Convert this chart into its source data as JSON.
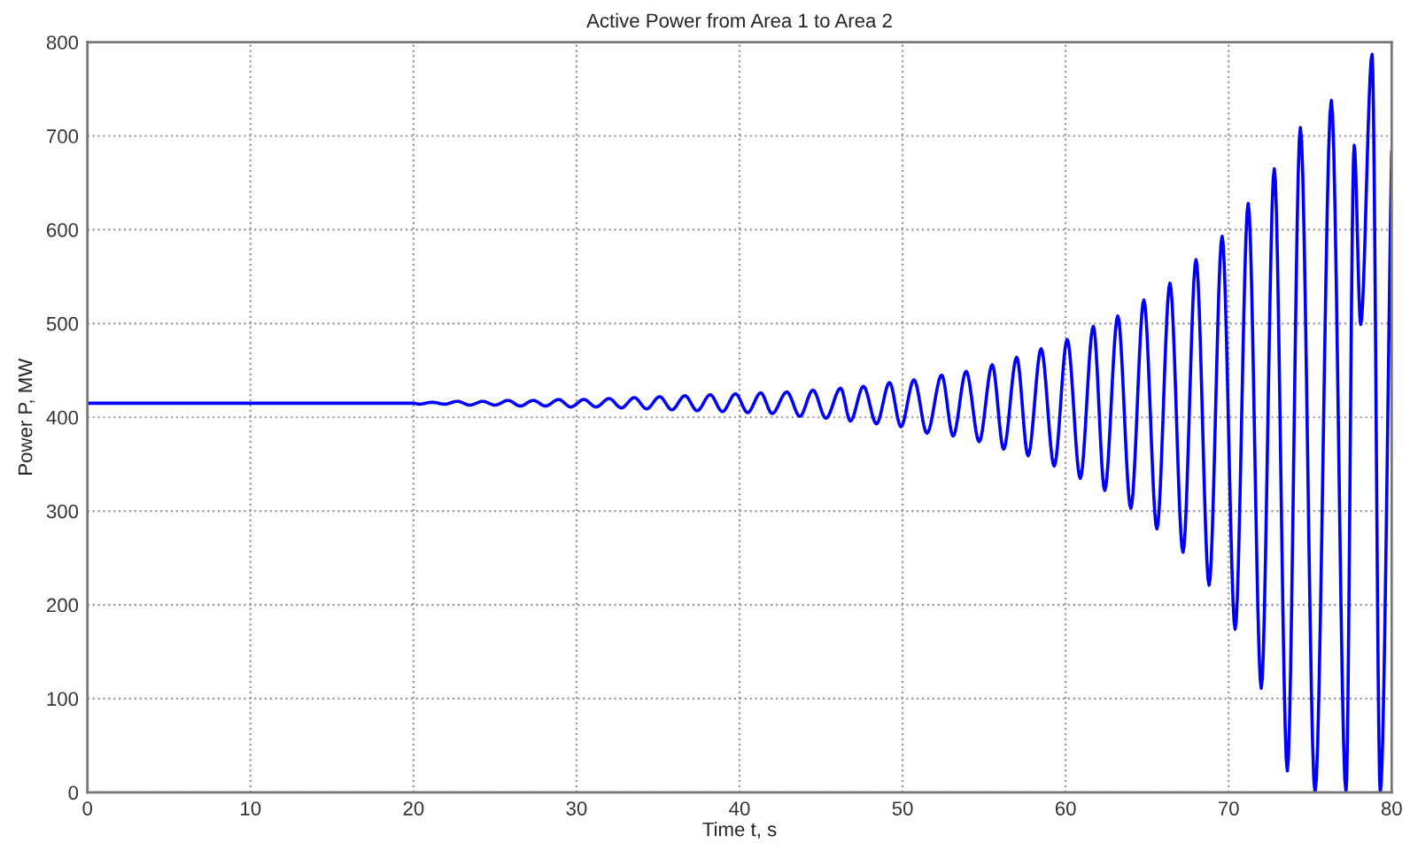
{
  "chart_data": {
    "type": "line",
    "title": "Active Power from Area 1 to Area 2",
    "xlabel": "Time t, s",
    "ylabel": "Power P, MW",
    "xlim": [
      0,
      80
    ],
    "ylim": [
      0,
      800
    ],
    "xticks": [
      0,
      10,
      20,
      30,
      40,
      50,
      60,
      70,
      80
    ],
    "yticks": [
      0,
      100,
      200,
      300,
      400,
      500,
      600,
      700,
      800
    ],
    "grid": true,
    "line_style": "solid",
    "marker": "none",
    "series": [
      {
        "color": "#0000ff",
        "x": [
          0,
          20,
          20.35,
          21.15,
          21.9,
          22.7,
          23.45,
          24.25,
          25.0,
          25.8,
          26.55,
          27.35,
          28.1,
          28.9,
          29.65,
          30.45,
          31.2,
          32.0,
          32.75,
          33.55,
          34.3,
          35.1,
          35.85,
          36.65,
          37.4,
          38.2,
          38.95,
          39.75,
          40.5,
          41.3,
          42.0,
          42.9,
          43.7,
          44.5,
          45.3,
          46.2,
          46.8,
          47.6,
          48.4,
          49.2,
          49.9,
          50.7,
          51.5,
          52.4,
          53.1,
          53.9,
          54.7,
          55.5,
          56.2,
          57.0,
          57.7,
          58.5,
          59.3,
          60.1,
          60.9,
          61.7,
          62.4,
          63.2,
          64.0,
          64.8,
          65.6,
          66.4,
          67.2,
          68.0,
          68.8,
          69.6,
          70.4,
          71.2,
          72.0,
          72.8,
          73.6,
          74.4,
          75.3,
          76.3,
          77.2,
          77.7,
          78.1,
          78.8,
          79.3,
          80
        ],
        "values": [
          415,
          415,
          414,
          416,
          414,
          417,
          413,
          417,
          413,
          418,
          412,
          418,
          412,
          419,
          411,
          419,
          411,
          420,
          410,
          421,
          409,
          422,
          408,
          423,
          407,
          424,
          406,
          425,
          405,
          426,
          404,
          427,
          401,
          429,
          399,
          431,
          396,
          433,
          393,
          437,
          390,
          440,
          383,
          445,
          380,
          449,
          374,
          456,
          366,
          464,
          359,
          473,
          348,
          483,
          335,
          497,
          322,
          508,
          303,
          525,
          281,
          543,
          256,
          568,
          221,
          593,
          174,
          628,
          111,
          665,
          23,
          709,
          0,
          738,
          0,
          690,
          499,
          787,
          0,
          684
        ]
      }
    ]
  }
}
